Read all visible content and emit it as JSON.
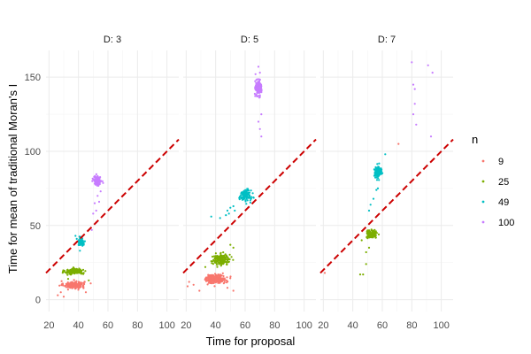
{
  "chart_data": {
    "type": "scatter",
    "xlabel": "Time for proposal",
    "ylabel": "Time for mean of traditional Moran's I",
    "xlim": [
      18,
      108
    ],
    "ylim": [
      -8,
      168
    ],
    "x_ticks": [
      20,
      40,
      60,
      80,
      100
    ],
    "y_ticks": [
      0,
      50,
      100,
      150
    ],
    "grid": true,
    "legend": {
      "title": "n",
      "position": "right",
      "entries": [
        {
          "label": "9",
          "color": "#F8766D"
        },
        {
          "label": "25",
          "color": "#7CAE00"
        },
        {
          "label": "49",
          "color": "#00BFC4"
        },
        {
          "label": "100",
          "color": "#C77CFF"
        }
      ]
    },
    "reference_line": {
      "style": "dashed",
      "color": "#CC0000",
      "slope": 1,
      "intercept": 0
    },
    "facets": [
      {
        "label": "D: 3",
        "clusters": [
          {
            "n": "9",
            "center": [
              37,
              10
            ],
            "spread": [
              7,
              2.5
            ],
            "count": 180
          },
          {
            "n": "25",
            "center": [
              37,
              19
            ],
            "spread": [
              6,
              2
            ],
            "count": 170
          },
          {
            "n": "49",
            "center": [
              42,
              39
            ],
            "spread": [
              2.5,
              2.5
            ],
            "count": 70
          },
          {
            "n": "100",
            "center": [
              53,
              80
            ],
            "spread": [
              2.5,
              3
            ],
            "count": 140
          }
        ],
        "outliers": [
          {
            "n": "9",
            "x": 26,
            "y": 3
          },
          {
            "n": "9",
            "x": 28,
            "y": 5
          },
          {
            "n": "9",
            "x": 30,
            "y": 2
          },
          {
            "n": "9",
            "x": 45,
            "y": 5
          },
          {
            "n": "25",
            "x": 33,
            "y": 14
          },
          {
            "n": "25",
            "x": 47,
            "y": 13
          },
          {
            "n": "49",
            "x": 38,
            "y": 43
          },
          {
            "n": "49",
            "x": 41,
            "y": 33
          },
          {
            "n": "100",
            "x": 53,
            "y": 70
          },
          {
            "n": "100",
            "x": 51,
            "y": 65
          },
          {
            "n": "100",
            "x": 55,
            "y": 73
          },
          {
            "n": "100",
            "x": 52,
            "y": 60
          },
          {
            "n": "100",
            "x": 54,
            "y": 66
          },
          {
            "n": "100",
            "x": 50,
            "y": 58
          },
          {
            "n": "100",
            "x": 52,
            "y": 52
          },
          {
            "n": "100",
            "x": 49,
            "y": 47
          }
        ]
      },
      {
        "label": "D: 5",
        "clusters": [
          {
            "n": "9",
            "center": [
              40,
              14
            ],
            "spread": [
              7,
              3
            ],
            "count": 200
          },
          {
            "n": "25",
            "center": [
              44,
              27
            ],
            "spread": [
              6,
              3.5
            ],
            "count": 180
          },
          {
            "n": "49",
            "center": [
              60,
              70
            ],
            "spread": [
              4,
              4
            ],
            "count": 110
          },
          {
            "n": "100",
            "center": [
              69,
              143
            ],
            "spread": [
              2,
              5
            ],
            "count": 140
          }
        ],
        "outliers": [
          {
            "n": "9",
            "x": 21,
            "y": 9
          },
          {
            "n": "9",
            "x": 22,
            "y": 12
          },
          {
            "n": "9",
            "x": 25,
            "y": 10
          },
          {
            "n": "9",
            "x": 52,
            "y": 6
          },
          {
            "n": "9",
            "x": 48,
            "y": 8
          },
          {
            "n": "9",
            "x": 29,
            "y": 6
          },
          {
            "n": "25",
            "x": 50,
            "y": 37
          },
          {
            "n": "25",
            "x": 52,
            "y": 35
          },
          {
            "n": "25",
            "x": 33,
            "y": 22
          },
          {
            "n": "49",
            "x": 37,
            "y": 56
          },
          {
            "n": "49",
            "x": 43,
            "y": 55
          },
          {
            "n": "49",
            "x": 47,
            "y": 57
          },
          {
            "n": "49",
            "x": 48,
            "y": 60
          },
          {
            "n": "49",
            "x": 50,
            "y": 62
          },
          {
            "n": "49",
            "x": 52,
            "y": 63
          },
          {
            "n": "49",
            "x": 53,
            "y": 60
          },
          {
            "n": "49",
            "x": 49,
            "y": 58
          },
          {
            "n": "100",
            "x": 69,
            "y": 157
          },
          {
            "n": "100",
            "x": 70,
            "y": 153
          },
          {
            "n": "100",
            "x": 67,
            "y": 152
          },
          {
            "n": "100",
            "x": 71,
            "y": 125
          },
          {
            "n": "100",
            "x": 70,
            "y": 115
          },
          {
            "n": "100",
            "x": 71,
            "y": 110
          },
          {
            "n": "100",
            "x": 69,
            "y": 120
          }
        ]
      },
      {
        "label": "D: 7",
        "clusters": [
          {
            "n": "25",
            "center": [
              53,
              44
            ],
            "spread": [
              3.5,
              2.5
            ],
            "count": 130
          },
          {
            "n": "49",
            "center": [
              57,
              86
            ],
            "spread": [
              2.5,
              3.5
            ],
            "count": 140
          }
        ],
        "outliers": [
          {
            "n": "9",
            "x": 21,
            "y": 18
          },
          {
            "n": "9",
            "x": 71,
            "y": 105
          },
          {
            "n": "25",
            "x": 45,
            "y": 17
          },
          {
            "n": "25",
            "x": 47,
            "y": 17
          },
          {
            "n": "25",
            "x": 49,
            "y": 24
          },
          {
            "n": "25",
            "x": 49,
            "y": 32
          },
          {
            "n": "25",
            "x": 51,
            "y": 35
          },
          {
            "n": "25",
            "x": 46,
            "y": 40
          },
          {
            "n": "49",
            "x": 51,
            "y": 60
          },
          {
            "n": "49",
            "x": 52,
            "y": 64
          },
          {
            "n": "49",
            "x": 54,
            "y": 68
          },
          {
            "n": "49",
            "x": 56,
            "y": 74
          },
          {
            "n": "49",
            "x": 62,
            "y": 98
          },
          {
            "n": "49",
            "x": 57,
            "y": 75
          },
          {
            "n": "100",
            "x": 80,
            "y": 160
          },
          {
            "n": "100",
            "x": 91,
            "y": 158
          },
          {
            "n": "100",
            "x": 94,
            "y": 153
          },
          {
            "n": "100",
            "x": 81,
            "y": 145
          },
          {
            "n": "100",
            "x": 82,
            "y": 142
          },
          {
            "n": "100",
            "x": 82,
            "y": 132
          },
          {
            "n": "100",
            "x": 81,
            "y": 125
          },
          {
            "n": "100",
            "x": 83,
            "y": 118
          },
          {
            "n": "100",
            "x": 93,
            "y": 110
          }
        ]
      }
    ]
  }
}
